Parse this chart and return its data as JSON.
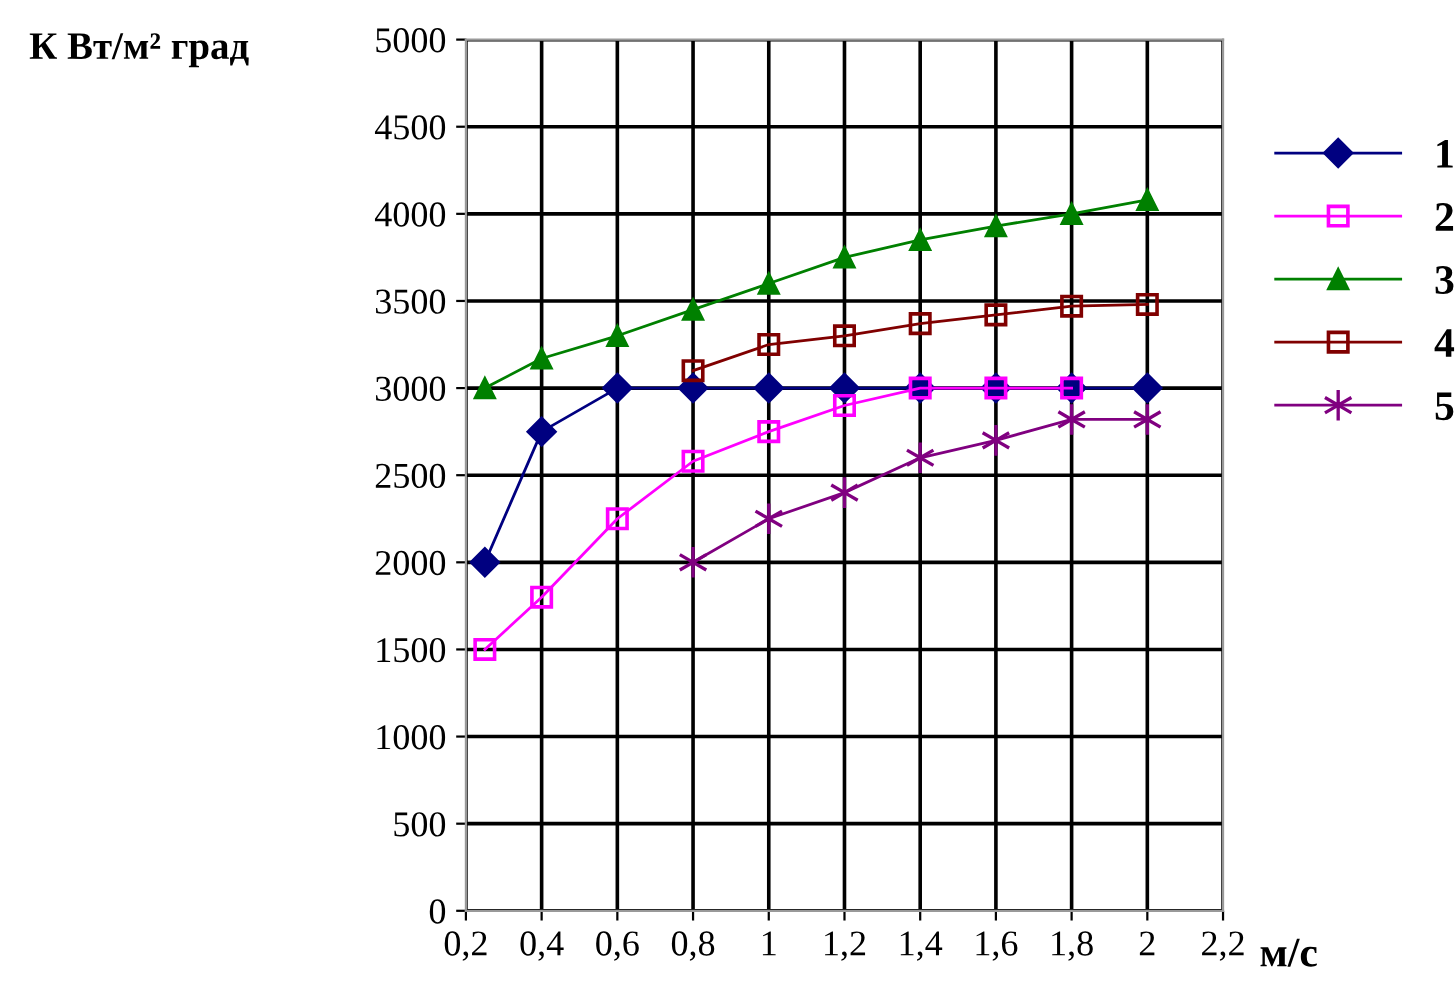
{
  "chart_data": {
    "type": "line",
    "ylabel": "К Вт/м² град",
    "xlabel": "м/с",
    "xlim": [
      0.2,
      2.2
    ],
    "xticks": [
      {
        "value": 0.2,
        "label": "0,2"
      },
      {
        "value": 0.4,
        "label": "0,4"
      },
      {
        "value": 0.6,
        "label": "0,6"
      },
      {
        "value": 0.8,
        "label": "0,8"
      },
      {
        "value": 1,
        "label": "1"
      },
      {
        "value": 1.2,
        "label": "1,2"
      },
      {
        "value": 1.4,
        "label": "1,4"
      },
      {
        "value": 1.6,
        "label": "1,6"
      },
      {
        "value": 1.8,
        "label": "1,8"
      },
      {
        "value": 2,
        "label": "2"
      },
      {
        "value": 2.2,
        "label": "2,2"
      }
    ],
    "ylim": [
      0,
      5000
    ],
    "yticks": [
      0,
      500,
      1000,
      1500,
      2000,
      2500,
      3000,
      3500,
      4000,
      4500,
      5000
    ],
    "grid": true,
    "legend": "right",
    "line_style": "solid",
    "series": [
      {
        "name": "1",
        "color": "#000080",
        "marker": "diamond",
        "x": [
          0.25,
          0.4,
          0.6,
          0.8,
          1,
          1.2,
          1.4,
          1.6,
          1.8,
          2
        ],
        "values": [
          2000,
          2750,
          3000,
          3000,
          3000,
          3000,
          3000,
          3000,
          3000,
          3000
        ]
      },
      {
        "name": "2",
        "color": "#ff00ff",
        "marker": "square",
        "x": [
          0.25,
          0.4,
          0.6,
          0.8,
          1,
          1.2,
          1.4,
          1.6,
          1.8
        ],
        "values": [
          1500,
          1800,
          2250,
          2580,
          2750,
          2900,
          3000,
          3000,
          3000
        ]
      },
      {
        "name": "3",
        "color": "#008000",
        "marker": "triangle",
        "x": [
          0.25,
          0.4,
          0.6,
          0.8,
          1,
          1.2,
          1.4,
          1.6,
          1.8,
          2
        ],
        "values": [
          3000,
          3170,
          3300,
          3450,
          3600,
          3750,
          3850,
          3930,
          4000,
          4080
        ]
      },
      {
        "name": "4",
        "color": "#800000",
        "marker": "square",
        "x": [
          0.8,
          1,
          1.2,
          1.4,
          1.6,
          1.8,
          2
        ],
        "values": [
          3100,
          3250,
          3300,
          3370,
          3420,
          3470,
          3480
        ]
      },
      {
        "name": "5",
        "color": "#800080",
        "marker": "cross",
        "x": [
          0.8,
          1,
          1.2,
          1.4,
          1.6,
          1.8,
          2
        ],
        "values": [
          2000,
          2250,
          2400,
          2600,
          2700,
          2820,
          2820
        ]
      }
    ]
  }
}
